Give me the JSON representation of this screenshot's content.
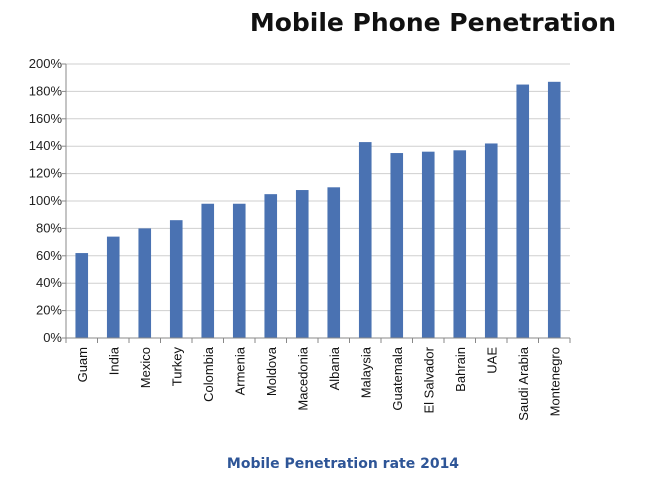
{
  "chart_data": {
    "type": "bar",
    "title": "Mobile Phone Penetration",
    "subtitle": "Mobile Penetration rate 2014",
    "xlabel": "",
    "ylabel": "",
    "ylim": [
      0,
      200
    ],
    "ytick_step": 20,
    "ytick_suffix": "%",
    "grid": true,
    "categories": [
      "Guam",
      "India",
      "Mexico",
      "Turkey",
      "Colombia",
      "Armenia",
      "Moldova",
      "Macedonia",
      "Albania",
      "Malaysia",
      "Guatemala",
      "El Salvador",
      "Bahrain",
      "UAE",
      "Saudi Arabia",
      "Montenegro"
    ],
    "values": [
      62,
      74,
      80,
      86,
      98,
      98,
      105,
      108,
      110,
      143,
      135,
      136,
      137,
      142,
      185,
      187
    ],
    "bar_color": "#4a72b2"
  }
}
